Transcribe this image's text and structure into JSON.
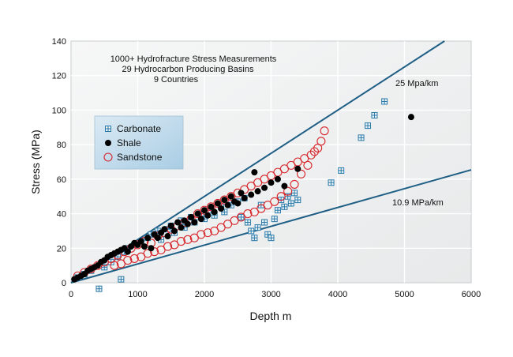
{
  "chart_data": {
    "type": "scatter",
    "title": "",
    "xlabel": "Depth  m",
    "ylabel": "Stress (MPa)",
    "xlim": [
      0,
      6000
    ],
    "ylim": [
      0,
      140
    ],
    "x_ticks": [
      0,
      1000,
      2000,
      3000,
      4000,
      5000,
      6000
    ],
    "y_ticks": [
      0,
      20,
      40,
      60,
      80,
      100,
      120,
      140
    ],
    "grid": true,
    "legend_position": "upper-left",
    "annotations": [
      "1000+ Hydrofracture Stress Measurements",
      "29 Hydrocarbon Producing Basins",
      "9 Countries"
    ],
    "reference_lines": [
      {
        "label": "25 Mpa/km",
        "gradient_mpa_per_km": 25,
        "from": [
          0,
          0
        ],
        "to": [
          5600,
          140
        ],
        "color": "#1f5f86"
      },
      {
        "label": "10.9 MPa/km",
        "gradient_mpa_per_km": 10.9,
        "from": [
          0,
          0
        ],
        "to": [
          6000,
          65.4
        ],
        "color": "#1f5f86"
      }
    ],
    "series": [
      {
        "name": "Carbonate",
        "marker": "boxed-plus",
        "color": "#2b79a8",
        "points": [
          [
            100,
            3
          ],
          [
            200,
            5
          ],
          [
            300,
            7
          ],
          [
            420,
            -3.5
          ],
          [
            500,
            9
          ],
          [
            600,
            12
          ],
          [
            700,
            15
          ],
          [
            750,
            2
          ],
          [
            800,
            18
          ],
          [
            850,
            20
          ],
          [
            950,
            22
          ],
          [
            1050,
            24
          ],
          [
            1150,
            26
          ],
          [
            1200,
            28
          ],
          [
            1300,
            30
          ],
          [
            1350,
            25
          ],
          [
            1450,
            31
          ],
          [
            1500,
            33
          ],
          [
            1550,
            29
          ],
          [
            1650,
            36
          ],
          [
            1700,
            32
          ],
          [
            1800,
            38
          ],
          [
            1850,
            35
          ],
          [
            1950,
            40
          ],
          [
            2000,
            37
          ],
          [
            2100,
            42
          ],
          [
            2150,
            39
          ],
          [
            2250,
            44
          ],
          [
            2300,
            41
          ],
          [
            2400,
            45
          ],
          [
            2500,
            47
          ],
          [
            2550,
            38
          ],
          [
            2600,
            49
          ],
          [
            2650,
            35
          ],
          [
            2700,
            30
          ],
          [
            2750,
            26
          ],
          [
            2800,
            32
          ],
          [
            2850,
            45
          ],
          [
            2900,
            35
          ],
          [
            2950,
            28
          ],
          [
            3000,
            26
          ],
          [
            3050,
            37
          ],
          [
            3100,
            42
          ],
          [
            3150,
            48
          ],
          [
            3200,
            44
          ],
          [
            3250,
            50
          ],
          [
            3300,
            46
          ],
          [
            3350,
            52
          ],
          [
            3400,
            48
          ],
          [
            3900,
            58
          ],
          [
            4050,
            65
          ],
          [
            4350,
            84
          ],
          [
            4450,
            91
          ],
          [
            4550,
            97
          ],
          [
            4700,
            105
          ]
        ]
      },
      {
        "name": "Shale",
        "marker": "filled-circle",
        "color": "#000000",
        "points": [
          [
            50,
            2
          ],
          [
            100,
            3
          ],
          [
            150,
            4
          ],
          [
            200,
            5
          ],
          [
            250,
            7
          ],
          [
            300,
            8
          ],
          [
            350,
            9
          ],
          [
            400,
            10
          ],
          [
            450,
            12
          ],
          [
            500,
            13
          ],
          [
            550,
            15
          ],
          [
            600,
            16
          ],
          [
            650,
            17
          ],
          [
            700,
            18
          ],
          [
            750,
            19
          ],
          [
            800,
            20
          ],
          [
            850,
            18
          ],
          [
            900,
            21
          ],
          [
            950,
            23
          ],
          [
            1000,
            22
          ],
          [
            1050,
            24
          ],
          [
            1100,
            21
          ],
          [
            1150,
            26
          ],
          [
            1200,
            20
          ],
          [
            1250,
            28
          ],
          [
            1300,
            26
          ],
          [
            1350,
            29
          ],
          [
            1400,
            31
          ],
          [
            1450,
            27
          ],
          [
            1500,
            33
          ],
          [
            1550,
            30
          ],
          [
            1600,
            35
          ],
          [
            1650,
            32
          ],
          [
            1700,
            36
          ],
          [
            1750,
            34
          ],
          [
            1800,
            38
          ],
          [
            1850,
            35
          ],
          [
            1900,
            40
          ],
          [
            1950,
            37
          ],
          [
            2000,
            42
          ],
          [
            2050,
            39
          ],
          [
            2100,
            44
          ],
          [
            2150,
            41
          ],
          [
            2200,
            46
          ],
          [
            2250,
            43
          ],
          [
            2300,
            48
          ],
          [
            2350,
            45
          ],
          [
            2400,
            50
          ],
          [
            2450,
            47
          ],
          [
            2500,
            46
          ],
          [
            2550,
            52
          ],
          [
            2600,
            49
          ],
          [
            2700,
            51
          ],
          [
            2750,
            64
          ],
          [
            2800,
            53
          ],
          [
            2900,
            55
          ],
          [
            3000,
            58
          ],
          [
            3100,
            60
          ],
          [
            3200,
            56
          ],
          [
            3400,
            66
          ],
          [
            5100,
            96
          ]
        ]
      },
      {
        "name": "Sandstone",
        "marker": "open-circle",
        "color": "#d7262b",
        "points": [
          [
            100,
            4
          ],
          [
            200,
            6
          ],
          [
            300,
            8
          ],
          [
            400,
            10
          ],
          [
            500,
            12
          ],
          [
            600,
            14
          ],
          [
            700,
            16
          ],
          [
            800,
            18
          ],
          [
            900,
            20
          ],
          [
            1000,
            22
          ],
          [
            1100,
            24
          ],
          [
            1200,
            23
          ],
          [
            1300,
            27
          ],
          [
            1400,
            29
          ],
          [
            1500,
            31
          ],
          [
            1600,
            33
          ],
          [
            1700,
            35
          ],
          [
            1800,
            37
          ],
          [
            1900,
            40
          ],
          [
            2000,
            42
          ],
          [
            2100,
            44
          ],
          [
            2200,
            46
          ],
          [
            2300,
            48
          ],
          [
            2400,
            50
          ],
          [
            2500,
            52
          ],
          [
            2600,
            54
          ],
          [
            2700,
            56
          ],
          [
            2800,
            58
          ],
          [
            2900,
            60
          ],
          [
            3000,
            62
          ],
          [
            3100,
            64
          ],
          [
            3200,
            66
          ],
          [
            3300,
            68
          ],
          [
            3400,
            70
          ],
          [
            3500,
            72
          ],
          [
            3600,
            74
          ],
          [
            3700,
            78
          ],
          [
            3750,
            82
          ],
          [
            3800,
            88
          ],
          [
            3650,
            76
          ],
          [
            3550,
            68
          ],
          [
            3450,
            63
          ],
          [
            3350,
            57
          ],
          [
            3250,
            53
          ],
          [
            3150,
            50
          ],
          [
            3050,
            47
          ],
          [
            2950,
            45
          ],
          [
            2850,
            43
          ],
          [
            2750,
            41
          ],
          [
            2650,
            40
          ],
          [
            2550,
            38
          ],
          [
            2450,
            36
          ],
          [
            2350,
            34
          ],
          [
            2250,
            32
          ],
          [
            2150,
            30
          ],
          [
            2050,
            29
          ],
          [
            1950,
            28
          ],
          [
            1850,
            26
          ],
          [
            1750,
            25
          ],
          [
            1650,
            24
          ],
          [
            1550,
            22
          ],
          [
            1450,
            21
          ],
          [
            1350,
            19
          ],
          [
            1250,
            18
          ],
          [
            1150,
            17
          ],
          [
            1050,
            15
          ],
          [
            950,
            14
          ],
          [
            850,
            13
          ],
          [
            750,
            11
          ],
          [
            650,
            10
          ]
        ]
      }
    ]
  }
}
